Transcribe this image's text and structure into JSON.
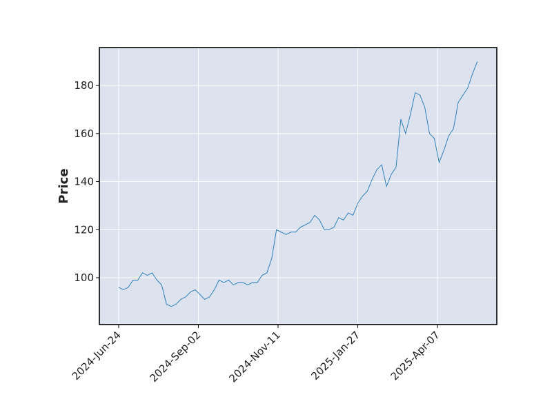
{
  "chart_data": {
    "type": "line",
    "ylabel": "Price",
    "x": [
      0,
      3,
      6,
      9,
      12,
      15,
      18,
      21,
      24,
      27,
      30,
      33,
      36,
      39,
      42,
      45,
      48,
      51,
      54,
      57,
      60,
      63,
      66,
      69,
      72,
      75,
      78,
      81,
      84,
      87,
      90,
      93,
      96,
      99,
      102,
      105,
      108,
      111,
      114,
      117,
      120,
      123,
      126,
      129,
      132,
      135,
      138,
      141,
      144,
      147,
      150,
      153,
      156,
      159,
      162,
      165,
      168,
      171,
      174,
      177,
      180,
      183,
      186,
      189,
      192,
      195,
      198,
      201,
      204,
      207,
      210,
      213,
      216,
      219,
      222,
      225
    ],
    "series": [
      {
        "color": "#1f77b4",
        "values": [
          96,
          95,
          96,
          99,
          99,
          102,
          101,
          102,
          99,
          97,
          89,
          88,
          89,
          91,
          92,
          94,
          95,
          93,
          91,
          92,
          95,
          99,
          98,
          99,
          97,
          98,
          98,
          97,
          98,
          98,
          101,
          102,
          108,
          120,
          119,
          118,
          119,
          119,
          121,
          122,
          123,
          126,
          124,
          120,
          120,
          121,
          125,
          124,
          127,
          126,
          131,
          134,
          136,
          141,
          145,
          147,
          138,
          143,
          146,
          166,
          160,
          168,
          177,
          176,
          171,
          160,
          158,
          148,
          153,
          159,
          162,
          173,
          176,
          179,
          185,
          190
        ]
      }
    ],
    "xlim": [
      -12.1,
      237.2
    ],
    "xticks": [
      {
        "value": 0,
        "label": "2024-Jun-24"
      },
      {
        "value": 50,
        "label": "2024-Sep-02"
      },
      {
        "value": 100,
        "label": "2024-Nov-11"
      },
      {
        "value": 150,
        "label": "2025-Jan-27"
      },
      {
        "value": 200,
        "label": "2025-Apr-07"
      }
    ],
    "ylim": [
      80.5,
      195.8
    ],
    "yticks": [
      100,
      120,
      140,
      160,
      180
    ],
    "grid": true
  }
}
